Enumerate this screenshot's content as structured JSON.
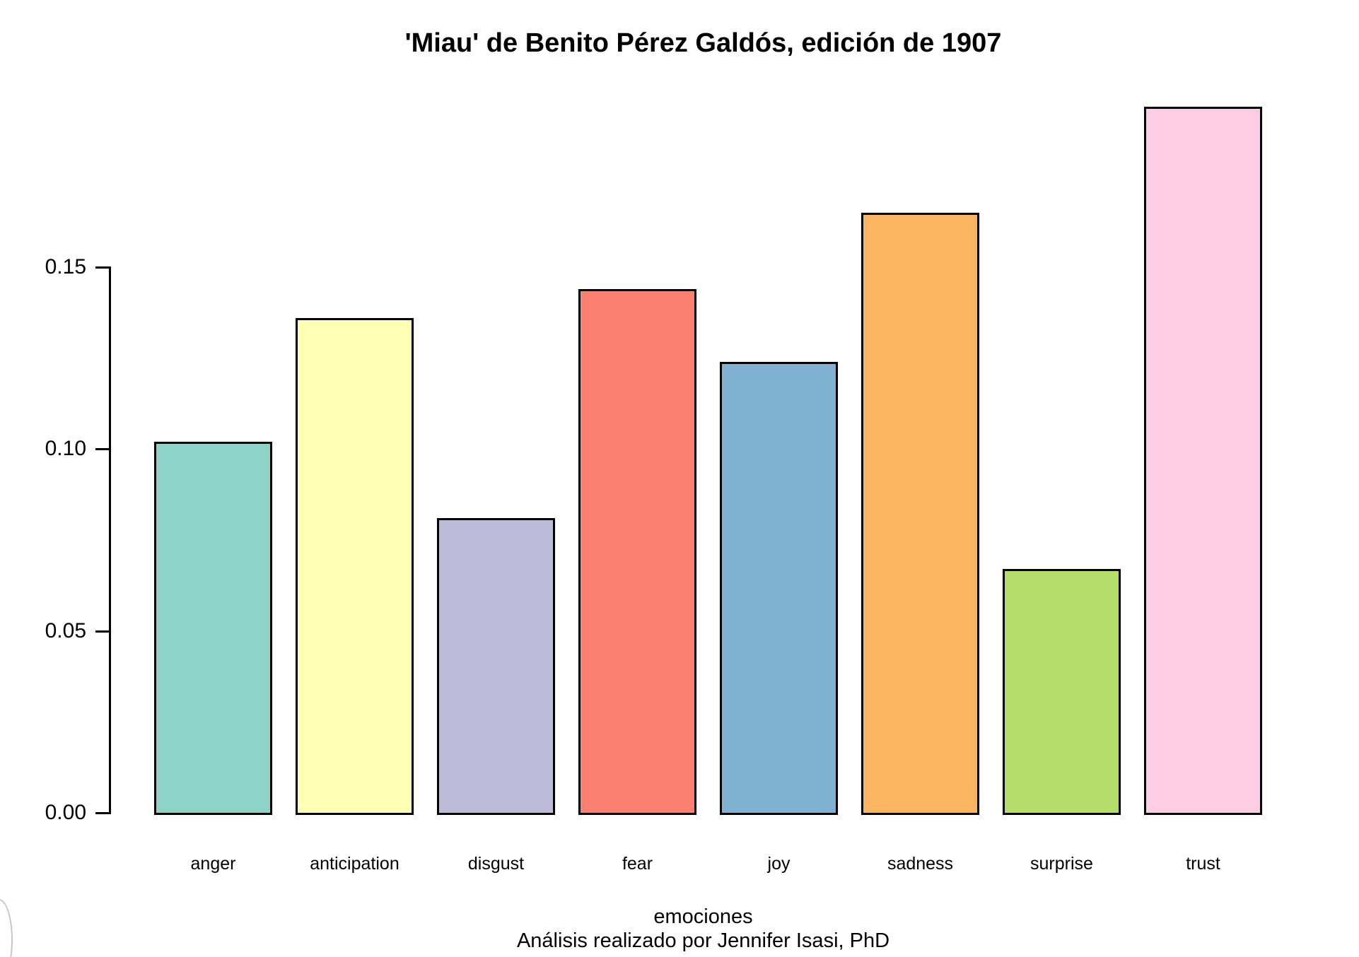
{
  "chart_data": {
    "type": "bar",
    "title": "'Miau' de Benito Pérez Galdós, edición de 1907",
    "xlabel": "emociones",
    "x_sublabel": "Análisis realizado por Jennifer Isasi, PhD",
    "ylabel": "",
    "categories": [
      "anger",
      "anticipation",
      "disgust",
      "fear",
      "joy",
      "sadness",
      "surprise",
      "trust"
    ],
    "values": [
      0.102,
      0.136,
      0.081,
      0.144,
      0.124,
      0.165,
      0.067,
      0.194
    ],
    "colors": [
      "#8DD3C7",
      "#FFFFB3",
      "#BEBADA",
      "#FB8072",
      "#80B1D3",
      "#FDB462",
      "#B3DE69",
      "#FCCDE5"
    ],
    "bar_border_color": "#000000",
    "ytick_labels": [
      "0.00",
      "0.05",
      "0.10",
      "0.15"
    ],
    "ytick_values": [
      0,
      0.05,
      0.1,
      0.15
    ],
    "ylim": [
      0,
      0.195
    ],
    "grid": false,
    "legend": false,
    "background_color": "#FFFFFF",
    "text_color": "#000000"
  }
}
